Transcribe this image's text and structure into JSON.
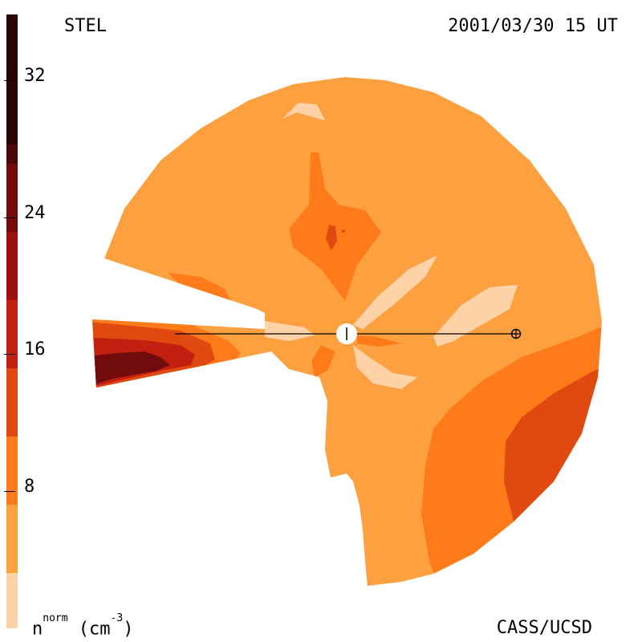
{
  "header": {
    "station": "STEL",
    "datetime": "2001/03/30 15 UT"
  },
  "footer": {
    "quantity": "n",
    "quantity_superscript": "norm",
    "unit_open": " (cm",
    "unit_exponent": "-3",
    "unit_close": ")",
    "credit": "CASS/UCSD"
  },
  "colorbar": {
    "ticks": [
      {
        "value": "32"
      },
      {
        "value": "24"
      },
      {
        "value": "16"
      },
      {
        "value": "8"
      }
    ],
    "levels": [
      {
        "range": "32+",
        "color": "#2a0506"
      },
      {
        "range": "28-32",
        "color": "#4a0a0a"
      },
      {
        "range": "24-28",
        "color": "#720b0b"
      },
      {
        "range": "20-24",
        "color": "#9c1010"
      },
      {
        "range": "16-20",
        "color": "#c22010"
      },
      {
        "range": "12-16",
        "color": "#e04a10"
      },
      {
        "range": "8-12",
        "color": "#ff7a18"
      },
      {
        "range": "4-8",
        "color": "#fca040"
      },
      {
        "range": "0-4",
        "color": "#ffd2a8"
      }
    ]
  }
}
